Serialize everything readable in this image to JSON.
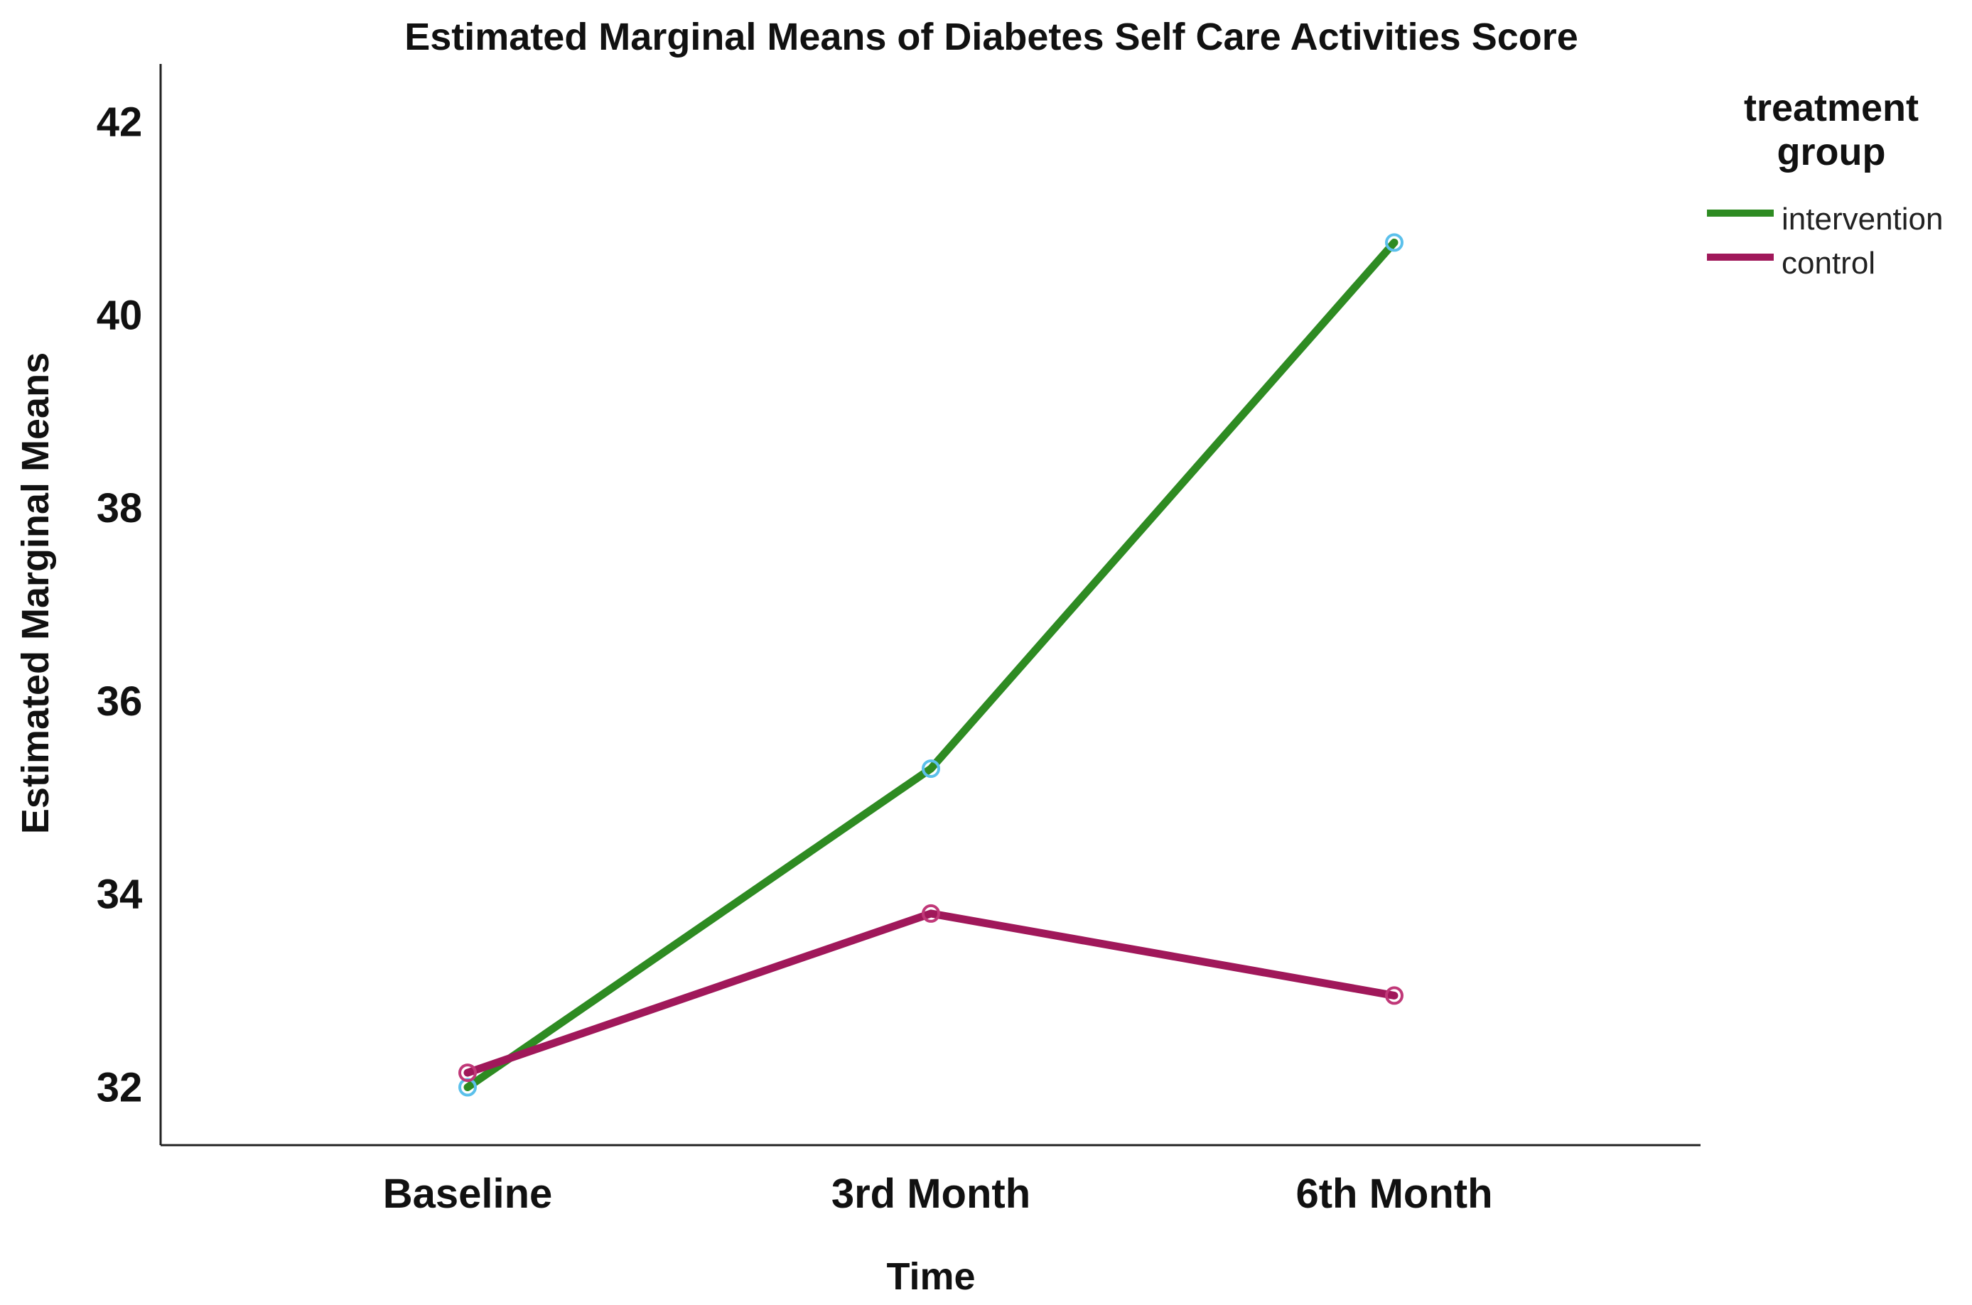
{
  "chart_data": {
    "type": "line",
    "title": "Estimated Marginal Means of  Diabetes Self Care Activities Score",
    "xlabel": "Time",
    "ylabel": "Estimated Marginal Means",
    "categories": [
      "Baseline",
      "3rd Month",
      "6th Month"
    ],
    "y_ticks": [
      "32",
      "34",
      "36",
      "38",
      "40",
      "42"
    ],
    "ylim": [
      31.4,
      42.6
    ],
    "grid": false,
    "legend": {
      "title_line1": "treatment",
      "title_line2": "group",
      "position": "top-right"
    },
    "series": [
      {
        "name": "intervention",
        "color": "#2e8b22",
        "marker_color": "#5bc0eb",
        "values": [
          32.0,
          35.3,
          40.75
        ]
      },
      {
        "name": "control",
        "color": "#a0185a",
        "marker_color": "#c03878",
        "values": [
          32.15,
          33.8,
          32.95
        ]
      }
    ]
  }
}
